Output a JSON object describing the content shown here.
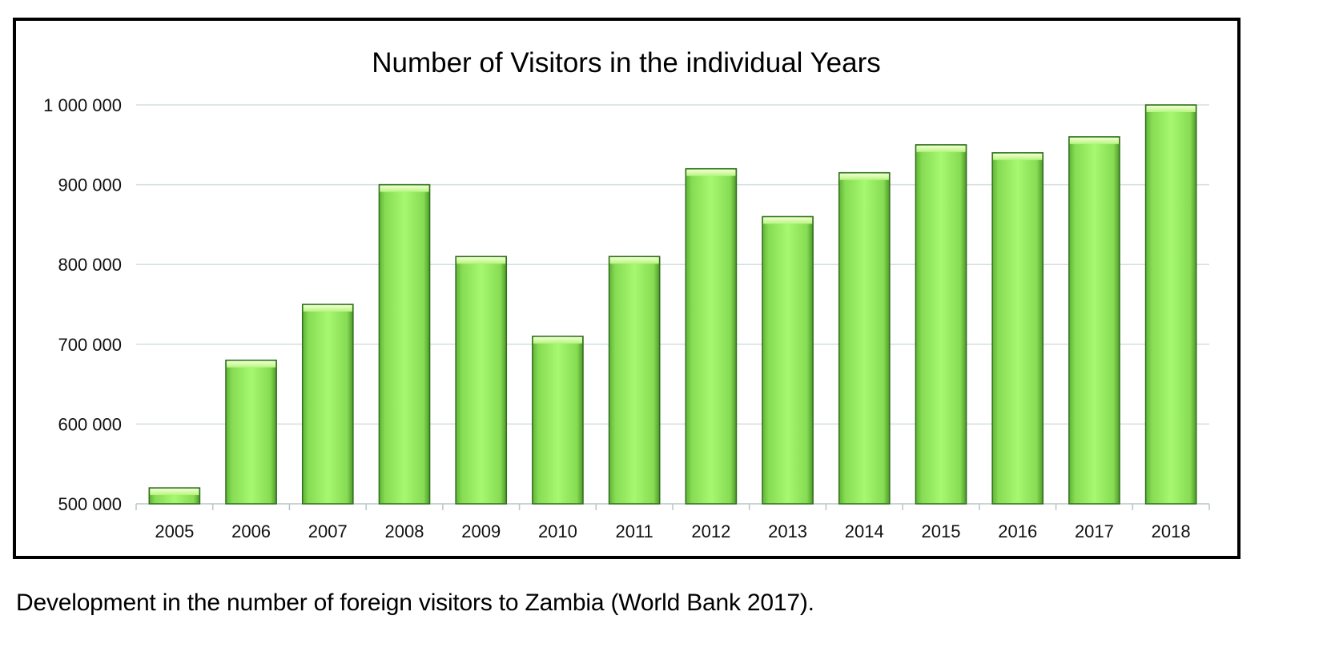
{
  "chart_data": {
    "type": "bar",
    "title": "Number of Visitors in the individual Years",
    "xlabel": "",
    "ylabel": "",
    "categories": [
      "2005",
      "2006",
      "2007",
      "2008",
      "2009",
      "2010",
      "2011",
      "2012",
      "2013",
      "2014",
      "2015",
      "2016",
      "2017",
      "2018"
    ],
    "values": [
      520000,
      680000,
      750000,
      900000,
      810000,
      710000,
      810000,
      920000,
      860000,
      915000,
      950000,
      940000,
      960000,
      1000000
    ],
    "ylim": [
      500000,
      1000000
    ],
    "yticks": [
      500000,
      600000,
      700000,
      800000,
      900000,
      1000000
    ],
    "ytick_labels": [
      "500 000",
      "600 000",
      "700 000",
      "800 000",
      "900 000",
      "1 000 000"
    ],
    "grid": true,
    "bar_color": "#8fe85a",
    "bar_edge_color": "#2f6e1a"
  },
  "caption": "Development in the number of foreign visitors to Zambia (World Bank 2017)."
}
